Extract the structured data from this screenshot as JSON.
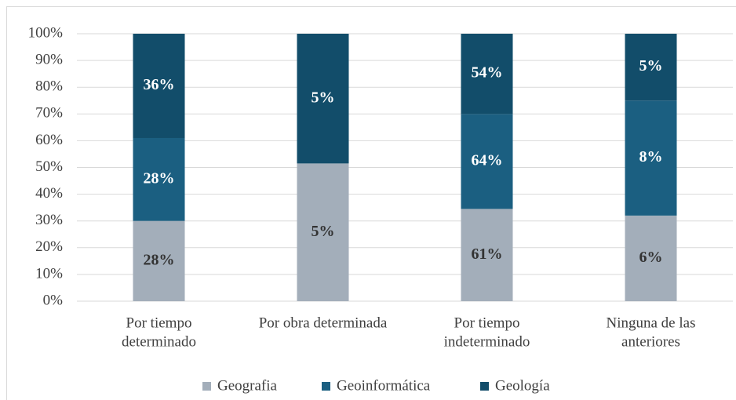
{
  "chart_data": {
    "type": "stacked_bar",
    "categories": [
      [
        "Por tiempo",
        "determinado"
      ],
      [
        "Por obra determinada"
      ],
      [
        "Por tiempo",
        "indeterminado"
      ],
      [
        "Ninguna de las",
        "anteriores"
      ]
    ],
    "series": [
      {
        "name": "Geografia",
        "color": "#a3aeba",
        "label_color": "#333333",
        "values": [
          30,
          51.5,
          34.5,
          32
        ],
        "labels": [
          "28%",
          "5%",
          "61%",
          "6%"
        ]
      },
      {
        "name": "Geoinformática",
        "color": "#1b5f81",
        "label_color": "#ffffff",
        "values": [
          31,
          0,
          35.5,
          43
        ],
        "labels": [
          "28%",
          null,
          "64%",
          "8%"
        ]
      },
      {
        "name": "Geología",
        "color": "#124d6a",
        "label_color": "#ffffff",
        "values": [
          39,
          48.5,
          30,
          25
        ],
        "labels": [
          "36%",
          "5%",
          "54%",
          "5%"
        ]
      }
    ],
    "ylim": [
      0,
      100
    ],
    "yticks": [
      {
        "value": 0,
        "label": "0%"
      },
      {
        "value": 10,
        "label": "10%"
      },
      {
        "value": 20,
        "label": "20%"
      },
      {
        "value": 30,
        "label": "30%"
      },
      {
        "value": 40,
        "label": "40%"
      },
      {
        "value": 50,
        "label": "50%"
      },
      {
        "value": 60,
        "label": "60%"
      },
      {
        "value": 70,
        "label": "70%"
      },
      {
        "value": 80,
        "label": "80%"
      },
      {
        "value": 90,
        "label": "90%"
      },
      {
        "value": 100,
        "label": "100%"
      }
    ],
    "grid": true,
    "legend": "bottom"
  }
}
